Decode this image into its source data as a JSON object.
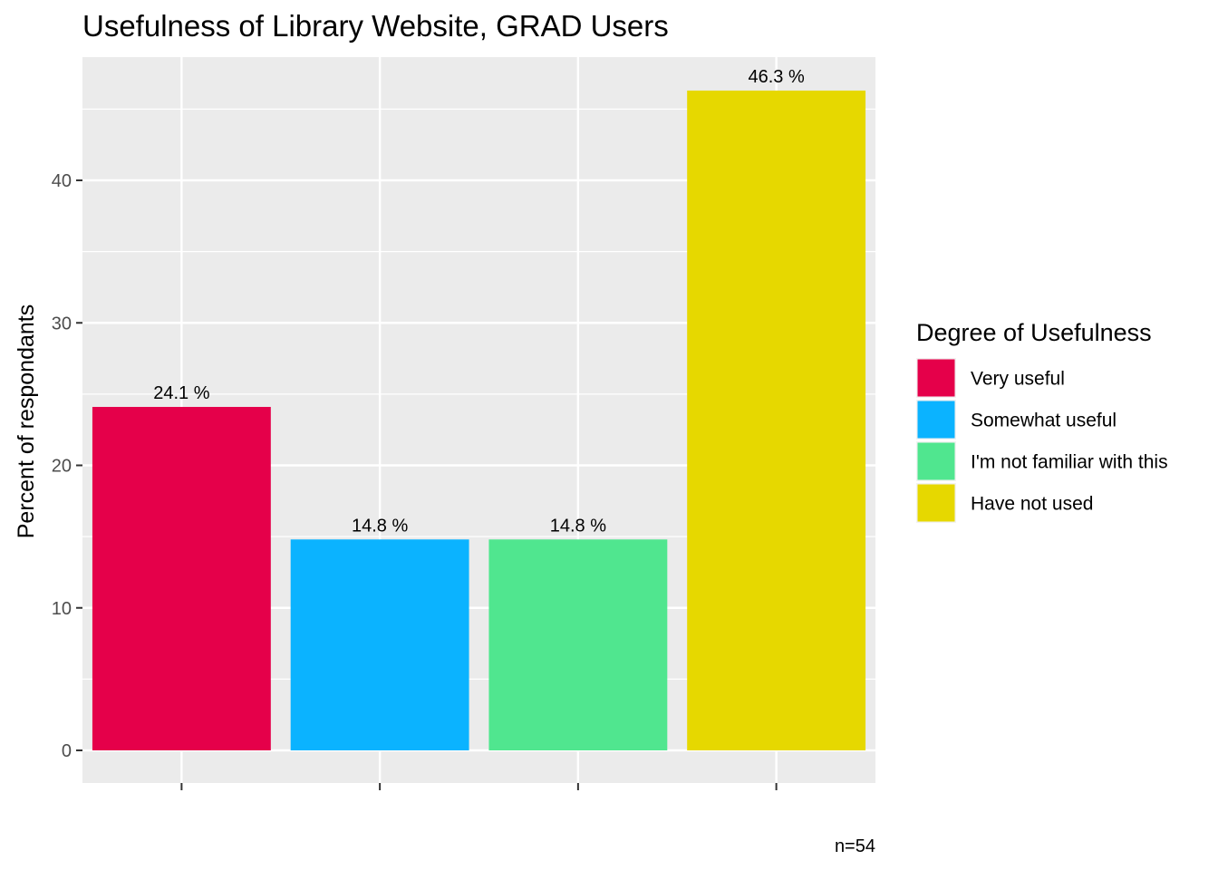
{
  "chart_data": {
    "type": "bar",
    "title": "Usefulness of Library Website,  GRAD Users",
    "ylabel": "Percent of respondants",
    "xlabel": "",
    "ylim": [
      0,
      48.6
    ],
    "yticks": [
      0,
      10,
      20,
      30,
      40
    ],
    "grid": true,
    "legend_position": "right",
    "legend_title": "Degree of Usefulness",
    "caption": "n=54",
    "categories": [
      "Very useful",
      "Somewhat useful",
      "I'm not familiar with this",
      "Have not used"
    ],
    "values": [
      24.1,
      14.8,
      14.8,
      46.3
    ],
    "value_labels": [
      "24.1 %",
      "14.8 %",
      "14.8 %",
      "46.3 %"
    ],
    "colors": [
      "#e5004a",
      "#0bb3ff",
      "#50e68f",
      "#e6d800"
    ]
  },
  "style": {
    "panel_background": "#ebebeb",
    "grid_color": "#ffffff",
    "tick_color": "#333333"
  }
}
